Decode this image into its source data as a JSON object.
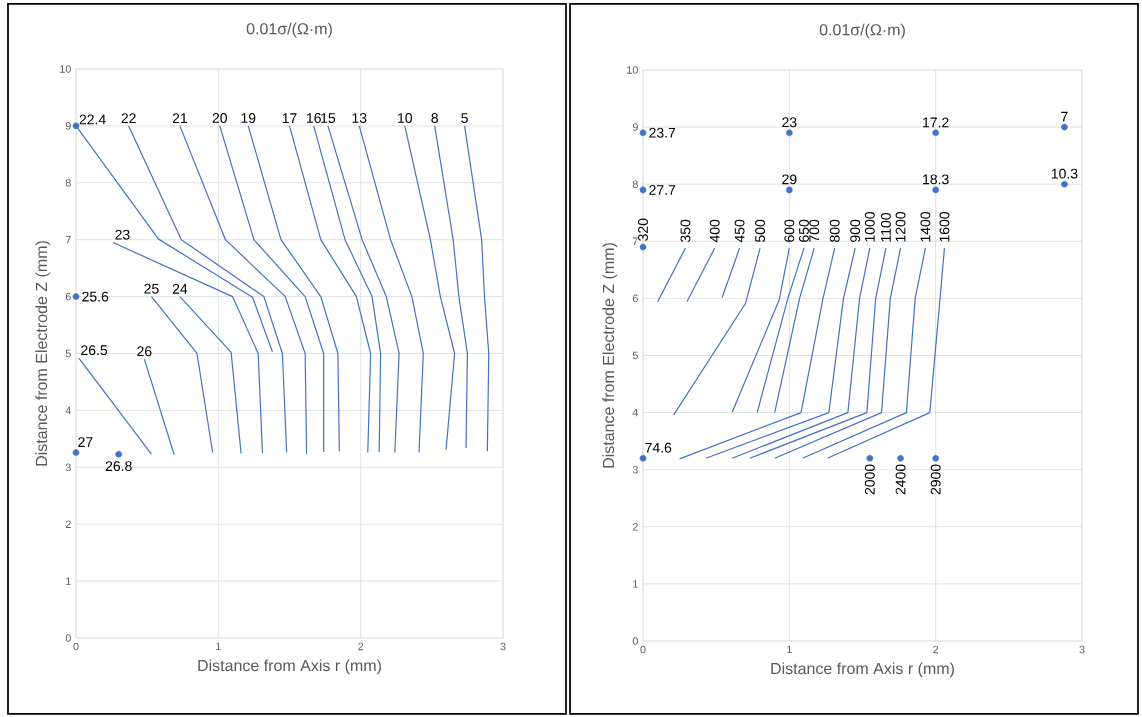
{
  "chart_data": [
    {
      "type": "line",
      "title": "0.01σ/(Ω·m)",
      "xlabel": "Distance from Axis r (mm)",
      "ylabel": "Distance from Electrode Z (mm)",
      "xlim": [
        0,
        3
      ],
      "ylim": [
        0,
        10
      ],
      "xticks": [
        0,
        1,
        2,
        3
      ],
      "yticks": [
        0,
        1,
        2,
        3,
        4,
        5,
        6,
        7,
        8,
        9,
        10
      ],
      "grid": true,
      "series": [
        {
          "type": "line",
          "color": "#4472c4",
          "x": [
            0,
            0.58,
            1.24,
            1.38
          ],
          "values": [
            9,
            7.01,
            5.99,
            5.03
          ]
        },
        {
          "type": "line",
          "name": "22",
          "color": "#4472c4",
          "x": [
            0.37,
            0.74,
            1.32,
            1.45,
            1.48
          ],
          "values": [
            9,
            7,
            6,
            5,
            3.26
          ]
        },
        {
          "type": "line",
          "name": "23",
          "color": "#4472c4",
          "x": [
            0.26,
            1.1,
            1.28,
            1.31
          ],
          "values": [
            6.95,
            6,
            5,
            3.25
          ]
        },
        {
          "type": "line",
          "name": "21",
          "color": "#4472c4",
          "x": [
            0.73,
            1.05,
            1.47,
            1.61,
            1.62
          ],
          "values": [
            9,
            7,
            6,
            5,
            3.24
          ]
        },
        {
          "type": "line",
          "name": "20",
          "color": "#4472c4",
          "x": [
            1.01,
            1.25,
            1.61,
            1.74,
            1.74
          ],
          "values": [
            9,
            7,
            6,
            5,
            3.27
          ]
        },
        {
          "type": "line",
          "name": "19",
          "color": "#4472c4",
          "x": [
            1.21,
            1.44,
            1.72,
            1.84,
            1.85
          ],
          "values": [
            9,
            7,
            6,
            5,
            3.28
          ]
        },
        {
          "type": "line",
          "name": "17",
          "color": "#4472c4",
          "x": [
            1.5,
            1.72,
            1.97,
            2.07,
            2.05
          ],
          "values": [
            9,
            7,
            6,
            5,
            3.26
          ]
        },
        {
          "type": "line",
          "name": "16",
          "color": "#4472c4",
          "x": [
            1.67,
            1.89,
            2.08,
            2.14,
            2.13
          ],
          "values": [
            9,
            7,
            6,
            5,
            3.27
          ]
        },
        {
          "type": "line",
          "name": "15",
          "color": "#4472c4",
          "x": [
            1.77,
            2.01,
            2.18,
            2.27,
            2.24
          ],
          "values": [
            9,
            7,
            6,
            5,
            3.26
          ]
        },
        {
          "type": "line",
          "name": "13",
          "color": "#4472c4",
          "x": [
            1.99,
            2.21,
            2.36,
            2.44,
            2.41
          ],
          "values": [
            9,
            7,
            6,
            5,
            3.26
          ]
        },
        {
          "type": "line",
          "name": "10",
          "color": "#4472c4",
          "x": [
            2.31,
            2.49,
            2.56,
            2.66,
            2.6
          ],
          "values": [
            9,
            7,
            6,
            5,
            3.31
          ]
        },
        {
          "type": "line",
          "name": "8",
          "color": "#4472c4",
          "x": [
            2.52,
            2.65,
            2.69,
            2.75,
            2.74
          ],
          "values": [
            9,
            7,
            6,
            5,
            3.34
          ]
        },
        {
          "type": "line",
          "name": "5",
          "color": "#4472c4",
          "x": [
            2.73,
            2.85,
            2.87,
            2.9,
            2.89
          ],
          "values": [
            9,
            7,
            6,
            5,
            3.28
          ]
        },
        {
          "type": "line",
          "name": "25",
          "color": "#4472c4",
          "x": [
            0.53,
            0.85,
            0.96
          ],
          "values": [
            6,
            5,
            3.26
          ]
        },
        {
          "type": "line",
          "name": "24",
          "color": "#4472c4",
          "x": [
            0.73,
            1.09,
            1.16
          ],
          "values": [
            6,
            5.02,
            3.24
          ]
        },
        {
          "type": "line",
          "name": "26.5",
          "color": "#4472c4",
          "x": [
            0.02,
            0.53
          ],
          "values": [
            4.92,
            3.23
          ]
        },
        {
          "type": "line",
          "name": "26",
          "color": "#4472c4",
          "x": [
            0.48,
            0.69
          ],
          "values": [
            4.9,
            3.22
          ]
        },
        {
          "type": "scatter",
          "name": "22.4",
          "color": "#4472c4",
          "x": [
            0
          ],
          "values": [
            9
          ]
        },
        {
          "type": "scatter",
          "name": "25.6",
          "color": "#4472c4",
          "x": [
            0
          ],
          "values": [
            6
          ]
        },
        {
          "type": "scatter",
          "name": "27",
          "color": "#4472c4",
          "x": [
            0
          ],
          "values": [
            3.26
          ]
        },
        {
          "type": "scatter",
          "name": "26.8",
          "color": "#4472c4",
          "x": [
            0.3
          ],
          "values": [
            3.23
          ]
        }
      ]
    },
    {
      "type": "line",
      "title": "0.01σ/(Ω·m)",
      "xlabel": "Distance from Axis r (mm)",
      "ylabel": "Distance from Electrode Z (mm)",
      "xlim": [
        0,
        3
      ],
      "ylim": [
        0,
        10
      ],
      "xticks": [
        0,
        1,
        2,
        3
      ],
      "yticks": [
        0,
        1,
        2,
        3,
        4,
        5,
        6,
        7,
        8,
        9,
        10
      ],
      "grid": true,
      "series": [
        {
          "type": "line",
          "name": "350",
          "color": "#4472c4",
          "x": [
            0.29,
            0.1
          ],
          "values": [
            6.88,
            5.94
          ]
        },
        {
          "type": "line",
          "name": "400",
          "color": "#4472c4",
          "x": [
            0.49,
            0.3
          ],
          "values": [
            6.88,
            5.94
          ]
        },
        {
          "type": "line",
          "name": "450",
          "color": "#4472c4",
          "x": [
            0.66,
            0.54
          ],
          "values": [
            6.88,
            6.01
          ]
        },
        {
          "type": "line",
          "name": "500",
          "color": "#4472c4",
          "x": [
            0.8,
            0.7,
            0.21
          ],
          "values": [
            6.88,
            5.91,
            3.96
          ]
        },
        {
          "type": "line",
          "name": "600",
          "color": "#4472c4",
          "x": [
            1.0,
            0.93,
            0.61
          ],
          "values": [
            6.88,
            5.97,
            4.01
          ]
        },
        {
          "type": "line",
          "name": "650",
          "color": "#4472c4",
          "x": [
            1.1,
            0.99,
            0.78
          ],
          "values": [
            6.88,
            6,
            4
          ]
        },
        {
          "type": "line",
          "name": "700",
          "color": "#4472c4",
          "x": [
            1.17,
            1.07,
            0.9
          ],
          "values": [
            6.88,
            6,
            4
          ]
        },
        {
          "type": "line",
          "name": "800",
          "color": "#4472c4",
          "x": [
            1.31,
            1.23,
            1.08,
            0.25
          ],
          "values": [
            6.88,
            6,
            4,
            3.19
          ]
        },
        {
          "type": "line",
          "name": "900",
          "color": "#4472c4",
          "x": [
            1.45,
            1.37,
            1.27,
            0.43
          ],
          "values": [
            6.88,
            6,
            4,
            3.2
          ]
        },
        {
          "type": "line",
          "name": "1000",
          "color": "#4472c4",
          "x": [
            1.55,
            1.48,
            1.4,
            0.61
          ],
          "values": [
            6.88,
            6,
            4,
            3.2
          ]
        },
        {
          "type": "line",
          "name": "1100",
          "color": "#4472c4",
          "x": [
            1.66,
            1.59,
            1.53,
            0.73
          ],
          "values": [
            6.88,
            6,
            4,
            3.2
          ]
        },
        {
          "type": "line",
          "name": "1200",
          "color": "#4472c4",
          "x": [
            1.76,
            1.69,
            1.63,
            0.9
          ],
          "values": [
            6.88,
            6,
            4,
            3.2
          ]
        },
        {
          "type": "line",
          "name": "1400",
          "color": "#4472c4",
          "x": [
            1.93,
            1.86,
            1.8,
            1.09
          ],
          "values": [
            6.88,
            6,
            4,
            3.2
          ]
        },
        {
          "type": "line",
          "name": "1600",
          "color": "#4472c4",
          "x": [
            2.06,
            2.03,
            1.96,
            1.26
          ],
          "values": [
            6.88,
            6,
            4,
            3.2
          ]
        },
        {
          "type": "scatter",
          "name": "23.7",
          "color": "#4472c4",
          "x": [
            0
          ],
          "values": [
            8.9
          ]
        },
        {
          "type": "scatter",
          "name": "23",
          "color": "#4472c4",
          "x": [
            1
          ],
          "values": [
            8.9
          ]
        },
        {
          "type": "scatter",
          "name": "17.2",
          "color": "#4472c4",
          "x": [
            2
          ],
          "values": [
            8.9
          ]
        },
        {
          "type": "scatter",
          "name": "7",
          "color": "#4472c4",
          "x": [
            2.88
          ],
          "values": [
            9
          ]
        },
        {
          "type": "scatter",
          "name": "27.7",
          "color": "#4472c4",
          "x": [
            0
          ],
          "values": [
            7.9
          ]
        },
        {
          "type": "scatter",
          "name": "29",
          "color": "#4472c4",
          "x": [
            1
          ],
          "values": [
            7.9
          ]
        },
        {
          "type": "scatter",
          "name": "18.3",
          "color": "#4472c4",
          "x": [
            2
          ],
          "values": [
            7.9
          ]
        },
        {
          "type": "scatter",
          "name": "10.3",
          "color": "#4472c4",
          "x": [
            2.88
          ],
          "values": [
            8
          ]
        },
        {
          "type": "scatter",
          "name": "320",
          "color": "#4472c4",
          "x": [
            0
          ],
          "values": [
            6.9
          ]
        },
        {
          "type": "scatter",
          "name": "74.6",
          "color": "#4472c4",
          "x": [
            0
          ],
          "values": [
            3.2
          ]
        },
        {
          "type": "scatter",
          "name": "2000",
          "color": "#4472c4",
          "x": [
            1.55
          ],
          "values": [
            3.2
          ]
        },
        {
          "type": "scatter",
          "name": "2400",
          "color": "#4472c4",
          "x": [
            1.76
          ],
          "values": [
            3.2
          ]
        },
        {
          "type": "scatter",
          "name": "2900",
          "color": "#4472c4",
          "x": [
            2
          ],
          "values": [
            3.2
          ]
        }
      ]
    }
  ]
}
